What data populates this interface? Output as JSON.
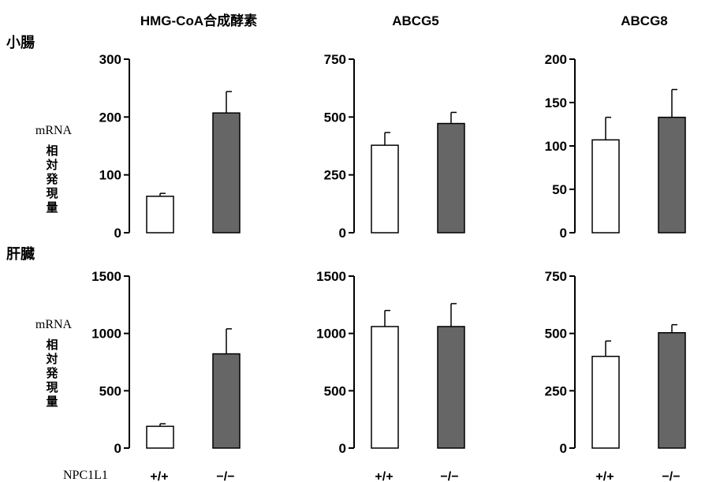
{
  "row_labels": [
    "小腸",
    "肝臓"
  ],
  "ylabel_mrna": "mRNA",
  "ylabel_chars": [
    "相",
    "対",
    "発",
    "現",
    "量"
  ],
  "genotype_label": "NPC1L1",
  "genotypes": [
    "+/+",
    "−/−"
  ],
  "colors": {
    "wild_type": "#ffffff",
    "knockout": "#666666",
    "axis": "#000000"
  },
  "chart_data": [
    {
      "type": "bar",
      "row": "小腸",
      "title": "HMG-CoA合成酵素",
      "categories": [
        "+/+",
        "−/−"
      ],
      "values": [
        63,
        207
      ],
      "errors": [
        5,
        37
      ],
      "ylim": [
        0,
        300
      ],
      "yticks": [
        0,
        100,
        200,
        300
      ],
      "grid": false
    },
    {
      "type": "bar",
      "row": "小腸",
      "title": "ABCG5",
      "categories": [
        "+/+",
        "−/−"
      ],
      "values": [
        378,
        472
      ],
      "errors": [
        55,
        48
      ],
      "ylim": [
        0,
        750
      ],
      "yticks": [
        0,
        250,
        500,
        750
      ],
      "grid": false
    },
    {
      "type": "bar",
      "row": "小腸",
      "title": "ABCG8",
      "categories": [
        "+/+",
        "−/−"
      ],
      "values": [
        107,
        133
      ],
      "errors": [
        26,
        32
      ],
      "ylim": [
        0,
        200
      ],
      "yticks": [
        0,
        50,
        100,
        150,
        200
      ],
      "grid": false
    },
    {
      "type": "bar",
      "row": "肝臓",
      "title": "",
      "categories": [
        "+/+",
        "−/−"
      ],
      "values": [
        190,
        822
      ],
      "errors": [
        22,
        218
      ],
      "ylim": [
        0,
        1500
      ],
      "yticks": [
        0,
        500,
        1000,
        1500
      ],
      "grid": false
    },
    {
      "type": "bar",
      "row": "肝臓",
      "title": "",
      "categories": [
        "+/+",
        "−/−"
      ],
      "values": [
        1060,
        1060
      ],
      "errors": [
        140,
        200
      ],
      "ylim": [
        0,
        1500
      ],
      "yticks": [
        0,
        500,
        1000,
        1500
      ],
      "grid": false
    },
    {
      "type": "bar",
      "row": "肝臓",
      "title": "",
      "categories": [
        "+/+",
        "−/−"
      ],
      "values": [
        400,
        503
      ],
      "errors": [
        67,
        35
      ],
      "ylim": [
        0,
        750
      ],
      "yticks": [
        0,
        250,
        500,
        750
      ],
      "grid": false
    }
  ]
}
